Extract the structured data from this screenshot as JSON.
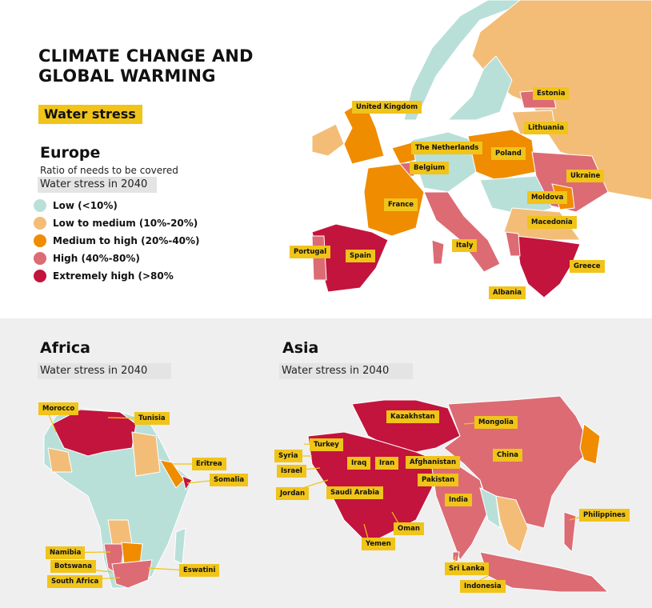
{
  "header": {
    "title": "CLIMATE CHANGE AND GLOBAL WARMING",
    "tag": "Water stress"
  },
  "europe": {
    "title": "Europe",
    "subtitle": "Ratio of needs to be covered",
    "period": "Water stress in 2040",
    "legend": [
      {
        "label": "Low (<10%)",
        "color": "#b9dfd9"
      },
      {
        "label": "Low to medium (10%-20%)",
        "color": "#f3bd77"
      },
      {
        "label": "Medium to high (20%-40%)",
        "color": "#ef8c00"
      },
      {
        "label": "High (40%-80%)",
        "color": "#dc6b74"
      },
      {
        "label": "Extremely high (>80%",
        "color": "#c3143d"
      }
    ],
    "labels": [
      "United Kingdom",
      "The Netherlands",
      "Belgium",
      "Estonia",
      "Lithuania",
      "Poland",
      "Ukraine",
      "Moldova",
      "Macedonia",
      "France",
      "Portugal",
      "Spain",
      "Italy",
      "Greece",
      "Albania"
    ]
  },
  "africa": {
    "title": "Africa",
    "period": "Water stress in 2040",
    "labels": [
      "Morocco",
      "Tunisia",
      "Eritrea",
      "Somalia",
      "Namibia",
      "Botswana",
      "South Africa",
      "Eswatini"
    ]
  },
  "asia": {
    "title": "Asia",
    "period": "Water stress in 2040",
    "labels": [
      "Kazakhstan",
      "Mongolia",
      "Turkey",
      "Syria",
      "Israel",
      "Iraq",
      "Iran",
      "Afghanistan",
      "China",
      "Jordan",
      "Saudi Arabia",
      "Pakistan",
      "India",
      "Oman",
      "Yemen",
      "Philippines",
      "Sri Lanka",
      "Indonesia"
    ]
  }
}
